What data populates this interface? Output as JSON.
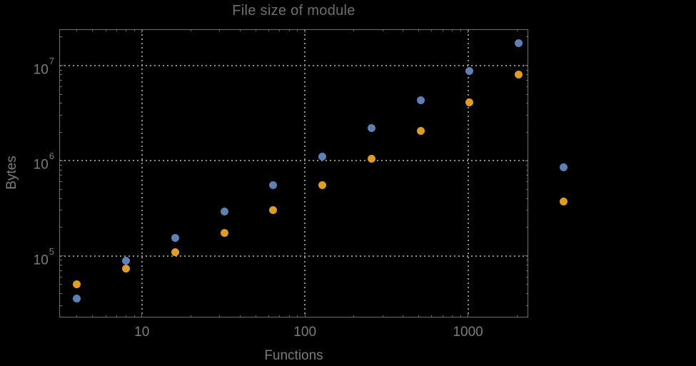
{
  "chart": {
    "title": "File size of module",
    "xlabel": "Functions",
    "ylabel": "Bytes",
    "colors": {
      "series_blue": "#5E81B5",
      "series_orange": "#E09C24",
      "frame": "#6f6f6f",
      "grid": "#8f8f8f",
      "text": "#7c7c7c",
      "background": "#000000"
    }
  },
  "chart_data": {
    "type": "scatter",
    "title": "File size of module",
    "xlabel": "Functions",
    "ylabel": "Bytes",
    "x_scale": "log",
    "y_scale": "log",
    "grid": true,
    "legend": false,
    "xlim": [
      3.13,
      2341
    ],
    "ylim": [
      22500,
      24100000
    ],
    "x_ticks": [
      10,
      100,
      1000
    ],
    "y_ticks": [
      100000,
      1000000,
      10000000
    ],
    "x": [
      4,
      8,
      16,
      32,
      64,
      128,
      256,
      512,
      1024,
      2048,
      3870
    ],
    "series": [
      {
        "name": "blue",
        "color": "#5E81B5",
        "values": [
          35500,
          89000,
          155000,
          294000,
          556000,
          1100000,
          2190000,
          4300000,
          8710000,
          17100000,
          857000
        ]
      },
      {
        "name": "orange",
        "color": "#E09C24",
        "values": [
          50600,
          73300,
          109000,
          175000,
          304000,
          552000,
          1045000,
          2060000,
          4110000,
          8060000,
          371000
        ]
      }
    ]
  }
}
